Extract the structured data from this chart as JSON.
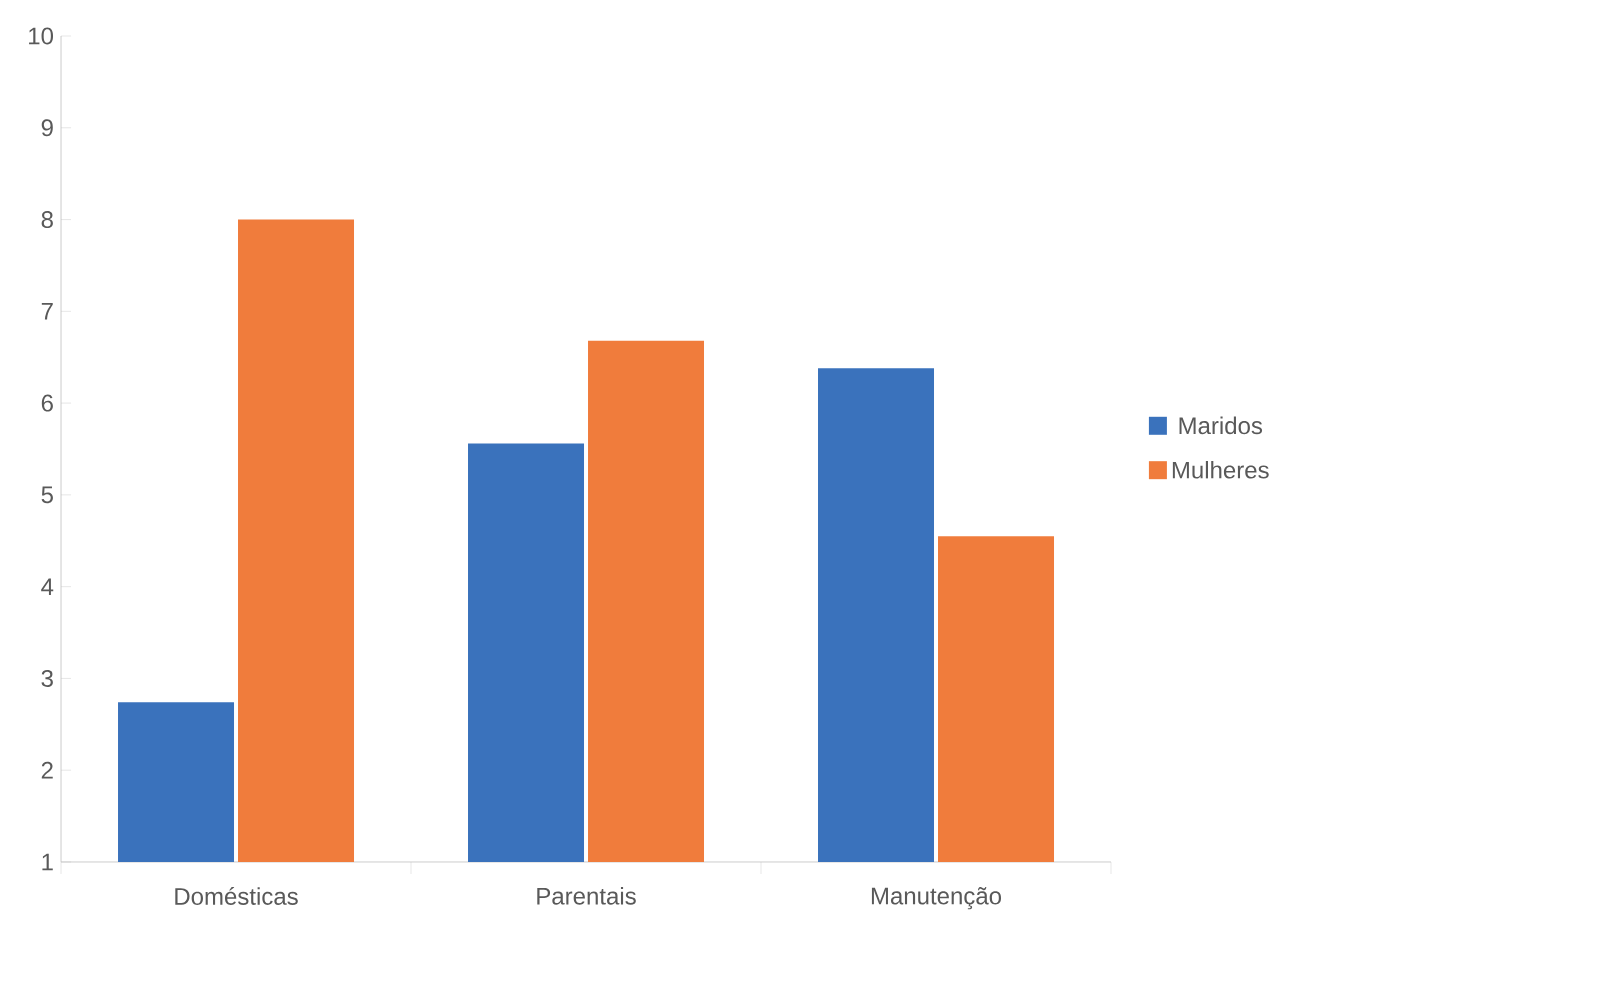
{
  "chart_data": {
    "type": "bar",
    "categories": [
      "Domésticas",
      "Parentais",
      "Manutenção"
    ],
    "series": [
      {
        "name": "Maridos",
        "color": "#3a72bc",
        "values": [
          2.74,
          5.56,
          6.38
        ]
      },
      {
        "name": "Mulheres",
        "color": "#f07c3c",
        "values": [
          8.0,
          6.68,
          4.55
        ]
      }
    ],
    "ylim": [
      1,
      10
    ],
    "yticks": [
      1,
      2,
      3,
      4,
      5,
      6,
      7,
      8,
      9,
      10
    ],
    "legend": "right",
    "grid": false
  }
}
